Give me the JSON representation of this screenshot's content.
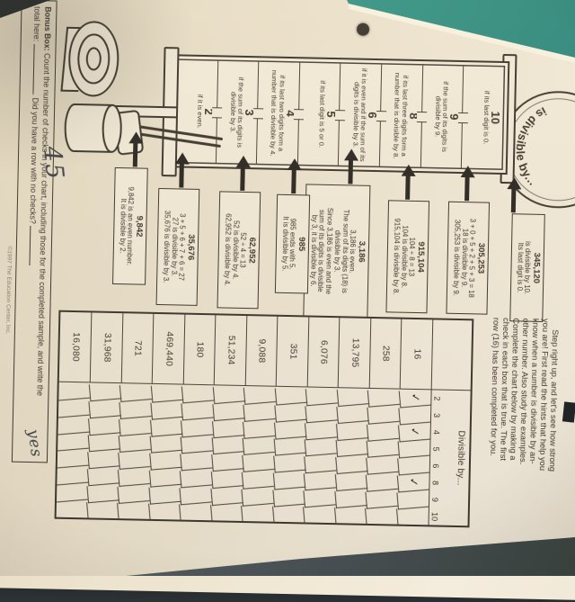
{
  "colors": {
    "paper": "#f2e9d7",
    "ink": "#3e382e",
    "line": "#4a4339",
    "teal_surface": "#3ba18e",
    "dark_surface": "#4b5458",
    "pen": "#3f4248"
  },
  "bell": {
    "label": "is divisible by..."
  },
  "tower": {
    "sections": [
      {
        "number": "10",
        "rule": "if its last digit is 0."
      },
      {
        "number": "9",
        "rule": "if the sum of its digits is divisible by 9."
      },
      {
        "number": "8",
        "rule": "if its last three digits form a number that is divisible by 8."
      },
      {
        "number": "6",
        "rule": "if it is even and if the sum of its digits is divisible by 3."
      },
      {
        "number": "5",
        "rule": "if its last digit is 5 or 0."
      },
      {
        "number": "4",
        "rule": "if its last two digits form a number that is divisible by 4."
      },
      {
        "number": "3",
        "rule": "if the sum of its digits is divisible by 3."
      },
      {
        "number": "2",
        "rule": "if it is even."
      }
    ]
  },
  "examples": [
    {
      "title": "345,120",
      "lines": [
        "is divisible by 10.",
        "Its last digit is 0."
      ]
    },
    {
      "title": "305,253",
      "lines": [
        "3 + 0 + 5 + 2 + 5 + 3 = 18",
        "18 is divisible by 9.",
        "305,253 is divisible by 9."
      ]
    },
    {
      "title": "915,104",
      "lines": [
        "104 ÷ 8 = 13",
        "104 is divisible by 8.",
        "915,104 is divisible by 8."
      ]
    },
    {
      "title": "3,186",
      "lines": [
        "3,186 is even.",
        "The sum of its digits (18) is",
        "divisible by 3.",
        "Since 3,186 is even and the",
        "sum of its digits is divisible",
        "by 3, it is divisible by 6."
      ]
    },
    {
      "title": "985",
      "lines": [
        "985 ends with 5.",
        "It is divisible by 5."
      ]
    },
    {
      "title": "62,952",
      "lines": [
        "52 ÷ 4 = 13",
        "52 is divisible by 4.",
        "62,952 is divisible by 4."
      ]
    },
    {
      "title": "35,676",
      "lines": [
        "3 + 5 + 6 + 7 + 6 = 27",
        "27 is divisible by 3.",
        "35,676 is divisible by 3."
      ]
    },
    {
      "title": "9,842",
      "lines": [
        "9,842 is an even number.",
        "It is divisible by 2."
      ]
    }
  ],
  "instructions": {
    "lines": [
      "Step right up, and let's see how strong",
      "you are! First read the hints that help you",
      "know when a number is divisible by an-",
      "other number. Also study the examples.",
      "Complete the chart below by making a",
      "check in each box that is true. The first",
      "row (16) has been completed for you."
    ]
  },
  "chart": {
    "title": "Divisible by...",
    "columns": [
      "2",
      "3",
      "4",
      "5",
      "6",
      "8",
      "9",
      "10"
    ],
    "check_glyph": "✓",
    "rows": [
      {
        "value": "16",
        "checks": [
          "2",
          "4",
          "8"
        ]
      },
      {
        "value": "258",
        "checks": []
      },
      {
        "value": "13,795",
        "checks": []
      },
      {
        "value": "6,076",
        "checks": []
      },
      {
        "value": "351",
        "checks": []
      },
      {
        "value": "9,088",
        "checks": []
      },
      {
        "value": "51,234",
        "checks": []
      },
      {
        "value": "180",
        "checks": []
      },
      {
        "value": "469,440",
        "checks": []
      },
      {
        "value": "721",
        "checks": []
      },
      {
        "value": "31,968",
        "checks": []
      },
      {
        "value": "16,080",
        "checks": []
      }
    ]
  },
  "bonus": {
    "label": "Bonus Box:",
    "line1": " Count the number of checks in your chart, including those for the completed sample, and write the",
    "line2_a": "total here:",
    "line2_b": ". Did you have a row with no checks?",
    "handwritten_total": "45",
    "handwritten_answer": "yes"
  },
  "copyright": "©1997 The Education Center, Inc."
}
